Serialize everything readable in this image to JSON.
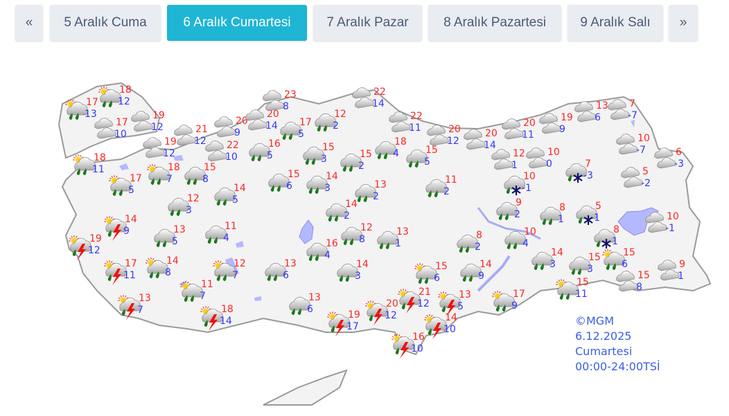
{
  "tabs": [
    {
      "label": "«",
      "active": false
    },
    {
      "label": "5 Aralık Cuma",
      "active": false
    },
    {
      "label": "6 Aralık Cumartesi",
      "active": true
    },
    {
      "label": "7 Aralık Pazar",
      "active": false
    },
    {
      "label": "8 Aralık Pazartesi",
      "active": false
    },
    {
      "label": "9 Aralık Salı",
      "active": false
    },
    {
      "label": "»",
      "active": false
    }
  ],
  "colors": {
    "active_tab": "#1fb5d4",
    "max_temp": "#ff2424",
    "min_temp": "#3434ff",
    "info_text": "#3a5fe8"
  },
  "stations": [
    {
      "icon": "sun-rain",
      "max": "18",
      "min": "12"
    },
    {
      "icon": "sun-rain",
      "max": "17",
      "min": "13"
    },
    {
      "icon": "cloudy",
      "max": "17",
      "min": "10"
    },
    {
      "icon": "cloudy",
      "max": "19",
      "min": "12"
    },
    {
      "icon": "cloudy",
      "max": "21",
      "min": "12"
    },
    {
      "icon": "cloudy",
      "max": "19",
      "min": "12"
    },
    {
      "icon": "cloudy",
      "max": "20",
      "min": "9"
    },
    {
      "icon": "cloudy",
      "max": "22",
      "min": "10"
    },
    {
      "icon": "cloudy",
      "max": "20",
      "min": "14"
    },
    {
      "icon": "cloudy",
      "max": "23",
      "min": "8"
    },
    {
      "icon": "rain",
      "max": "17",
      "min": "5"
    },
    {
      "icon": "rain",
      "max": "16",
      "min": "5"
    },
    {
      "icon": "sun-rain",
      "max": "18",
      "min": "11"
    },
    {
      "icon": "sun-rain",
      "max": "18",
      "min": "7"
    },
    {
      "icon": "rain",
      "max": "15",
      "min": "8"
    },
    {
      "icon": "sun-rain",
      "max": "17",
      "min": "5"
    },
    {
      "icon": "rain",
      "max": "14",
      "min": "5"
    },
    {
      "icon": "rain",
      "max": "12",
      "min": "3"
    },
    {
      "icon": "rain",
      "max": "15",
      "min": "6"
    },
    {
      "icon": "thunderstorm",
      "max": "14",
      "min": "9"
    },
    {
      "icon": "thunderstorm",
      "max": "19",
      "min": "12"
    },
    {
      "icon": "rain",
      "max": "13",
      "min": "5"
    },
    {
      "icon": "rain",
      "max": "11",
      "min": "4"
    },
    {
      "icon": "thunderstorm",
      "max": "17",
      "min": "11"
    },
    {
      "icon": "sun-rain",
      "max": "14",
      "min": "8"
    },
    {
      "icon": "sun-rain",
      "max": "12",
      "min": "7"
    },
    {
      "icon": "rain",
      "max": "13",
      "min": "6"
    },
    {
      "icon": "sun-rain",
      "max": "11",
      "min": "7"
    },
    {
      "icon": "thunderstorm",
      "max": "13",
      "min": "7"
    },
    {
      "icon": "thunderstorm",
      "max": "18",
      "min": "14"
    },
    {
      "icon": "rain",
      "max": "13",
      "min": "6"
    },
    {
      "icon": "rain",
      "max": "12",
      "min": "2"
    },
    {
      "icon": "rain",
      "max": "15",
      "min": "3"
    },
    {
      "icon": "rain",
      "max": "14",
      "min": "3"
    },
    {
      "icon": "rain",
      "max": "15",
      "min": "2"
    },
    {
      "icon": "rain",
      "max": "18",
      "min": "4"
    },
    {
      "icon": "rain",
      "max": "15",
      "min": "5"
    },
    {
      "icon": "cloudy",
      "max": "22",
      "min": "14"
    },
    {
      "icon": "cloudy",
      "max": "22",
      "min": "11"
    },
    {
      "icon": "cloudy",
      "max": "20",
      "min": "12"
    },
    {
      "icon": "rain",
      "max": "13",
      "min": "2"
    },
    {
      "icon": "rain",
      "max": "11",
      "min": "2"
    },
    {
      "icon": "rain",
      "max": "14",
      "min": "2"
    },
    {
      "icon": "rain",
      "max": "12",
      "min": "8"
    },
    {
      "icon": "rain",
      "max": "13",
      "min": "1"
    },
    {
      "icon": "rain",
      "max": "16",
      "min": "4"
    },
    {
      "icon": "rain",
      "max": "14",
      "min": "3"
    },
    {
      "icon": "sun-rain",
      "max": "15",
      "min": "6"
    },
    {
      "icon": "thunderstorm",
      "max": "21",
      "min": "12"
    },
    {
      "icon": "thunderstorm",
      "max": "20",
      "min": "12"
    },
    {
      "icon": "thunderstorm",
      "max": "19",
      "min": "17"
    },
    {
      "icon": "thunderstorm",
      "max": "13",
      "min": "5"
    },
    {
      "icon": "thunderstorm",
      "max": "14",
      "min": "10"
    },
    {
      "icon": "thunderstorm",
      "max": "16",
      "min": "10"
    },
    {
      "icon": "sun-rain",
      "max": "17",
      "min": "9"
    },
    {
      "icon": "cloudy",
      "max": "20",
      "min": "14"
    },
    {
      "icon": "cloudy",
      "max": "20",
      "min": "11"
    },
    {
      "icon": "cloudy",
      "max": "19",
      "min": "9"
    },
    {
      "icon": "cloudy",
      "max": "13",
      "min": "6"
    },
    {
      "icon": "cloudy",
      "max": "7",
      "min": "-7"
    },
    {
      "icon": "cloudy",
      "max": "12",
      "min": "1"
    },
    {
      "icon": "cloudy",
      "max": "10",
      "min": "0"
    },
    {
      "icon": "rain-snow",
      "max": "7",
      "min": "-3"
    },
    {
      "icon": "cloudy",
      "max": "10",
      "min": "-7"
    },
    {
      "icon": "cloudy",
      "max": "6",
      "min": "-3"
    },
    {
      "icon": "cloudy",
      "max": "5",
      "min": "-2"
    },
    {
      "icon": "rain-snow",
      "max": "10",
      "min": "-1"
    },
    {
      "icon": "rain",
      "max": "9",
      "min": "2"
    },
    {
      "icon": "rain",
      "max": "8",
      "min": "1"
    },
    {
      "icon": "rain-snow",
      "max": "5",
      "min": "1"
    },
    {
      "icon": "cloudy",
      "max": "10",
      "min": "-1"
    },
    {
      "icon": "rain-snow",
      "max": "8",
      "min": "1"
    },
    {
      "icon": "rain",
      "max": "10",
      "min": "4"
    },
    {
      "icon": "rain",
      "max": "8",
      "min": "2"
    },
    {
      "icon": "rain",
      "max": "14",
      "min": "3"
    },
    {
      "icon": "rain",
      "max": "15",
      "min": "3"
    },
    {
      "icon": "sun-rain",
      "max": "15",
      "min": "6"
    },
    {
      "icon": "cloudy",
      "max": "9",
      "min": "1"
    },
    {
      "icon": "cloudy",
      "max": "15",
      "min": "8"
    },
    {
      "icon": "sun-rain",
      "max": "15",
      "min": "11"
    },
    {
      "icon": "rain",
      "max": "14",
      "min": "9"
    }
  ],
  "info": {
    "source": "©MGM",
    "date": "6.12.2025",
    "day": "Cumartesi",
    "period": "00:00-24:00TSİ"
  }
}
